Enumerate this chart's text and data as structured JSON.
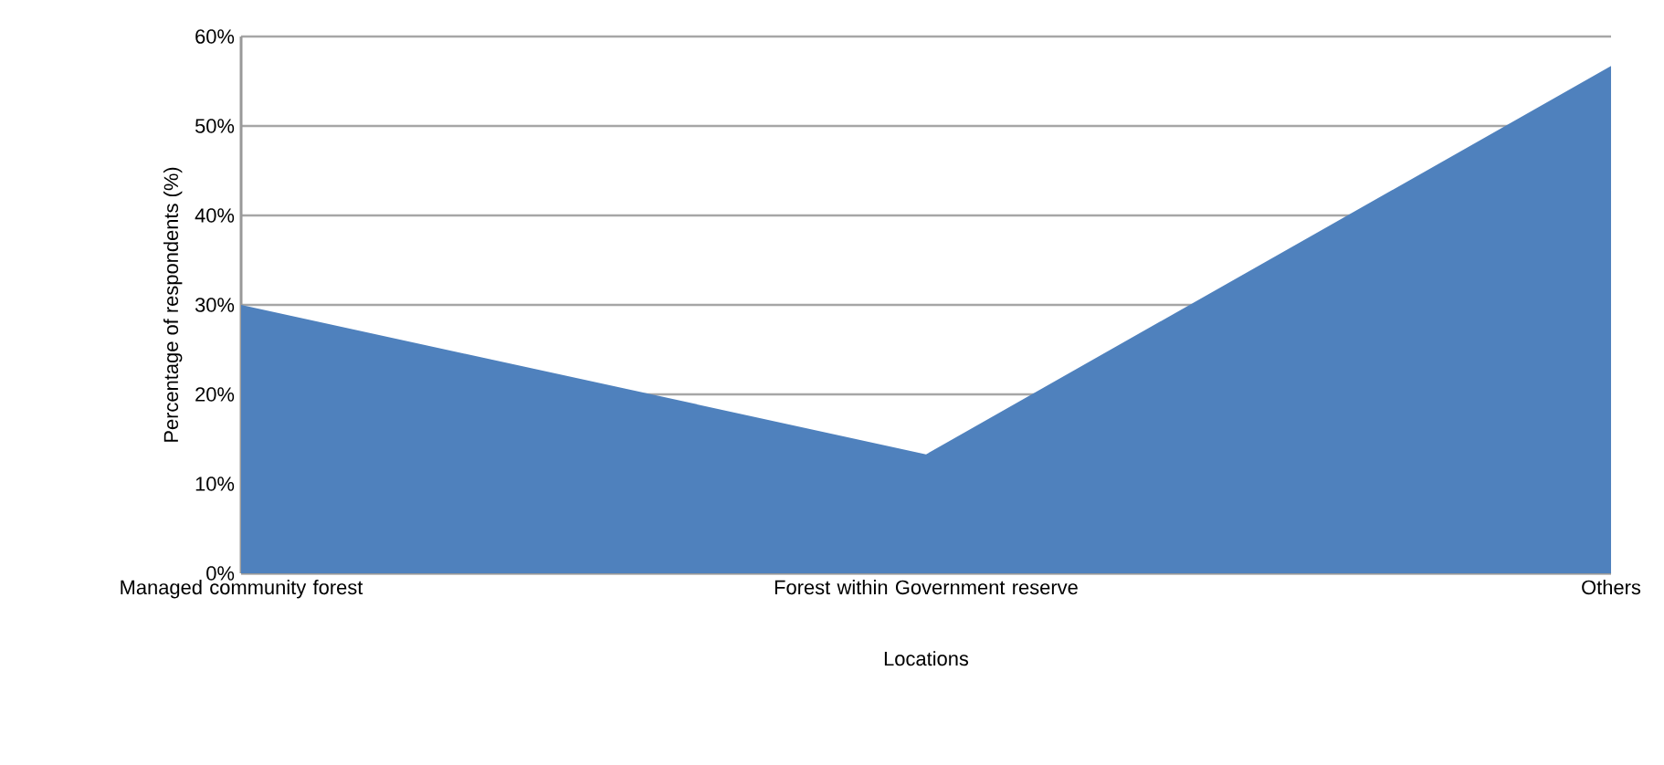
{
  "chart_data": {
    "type": "area",
    "xlabel": "Locations",
    "ylabel": "Percentage of respondents (%)",
    "categories": [
      "Managed community forest",
      "Forest within Government reserve",
      "Others"
    ],
    "series": [
      {
        "color": "#4f81bd",
        "values": [
          30,
          13.3,
          56.7
        ]
      }
    ],
    "ylim": [
      0,
      60
    ],
    "yticks": [
      {
        "value": 0,
        "label": "0%"
      },
      {
        "value": 10,
        "label": "10%"
      },
      {
        "value": 20,
        "label": "20%"
      },
      {
        "value": 30,
        "label": "30%"
      },
      {
        "value": 40,
        "label": "40%"
      },
      {
        "value": 50,
        "label": "50%"
      },
      {
        "value": 60,
        "label": "60%"
      }
    ],
    "grid": "y"
  }
}
